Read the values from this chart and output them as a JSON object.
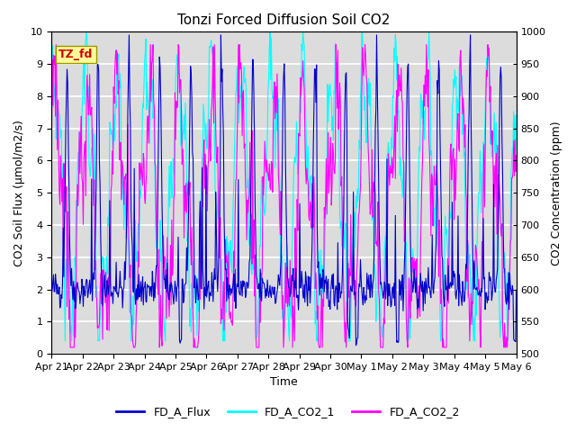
{
  "title": "Tonzi Forced Diffusion Soil CO2",
  "xlabel": "Time",
  "ylabel_left": "CO2 Soil Flux (μmol/m2/s)",
  "ylabel_right": "CO2 Concentration (ppm)",
  "ylim_left": [
    0.0,
    10.0
  ],
  "ylim_right": [
    500,
    1000
  ],
  "yticks_left": [
    0.0,
    1.0,
    2.0,
    3.0,
    4.0,
    5.0,
    6.0,
    7.0,
    8.0,
    9.0,
    10.0
  ],
  "yticks_right": [
    500,
    550,
    600,
    650,
    700,
    750,
    800,
    850,
    900,
    950,
    1000
  ],
  "xtick_labels": [
    "Apr 21",
    "Apr 22",
    "Apr 23",
    "Apr 24",
    "Apr 25",
    "Apr 26",
    "Apr 27",
    "Apr 28",
    "Apr 29",
    "Apr 30",
    "May 1",
    "May 2",
    "May 3",
    "May 4",
    "May 5",
    "May 6"
  ],
  "colors": {
    "flux": "#0000CC",
    "co2_1": "#00FFFF",
    "co2_2": "#FF00FF"
  },
  "legend_labels": [
    "FD_A_Flux",
    "FD_A_CO2_1",
    "FD_A_CO2_2"
  ],
  "annotation_text": "TZ_fd",
  "annotation_color": "#CC0000",
  "annotation_bg": "#FFFF99",
  "annotation_edge": "#999900",
  "bg_color": "#DCDCDC",
  "grid_color": "#FFFFFF",
  "title_fontsize": 11,
  "label_fontsize": 9,
  "tick_fontsize": 8,
  "legend_fontsize": 9
}
